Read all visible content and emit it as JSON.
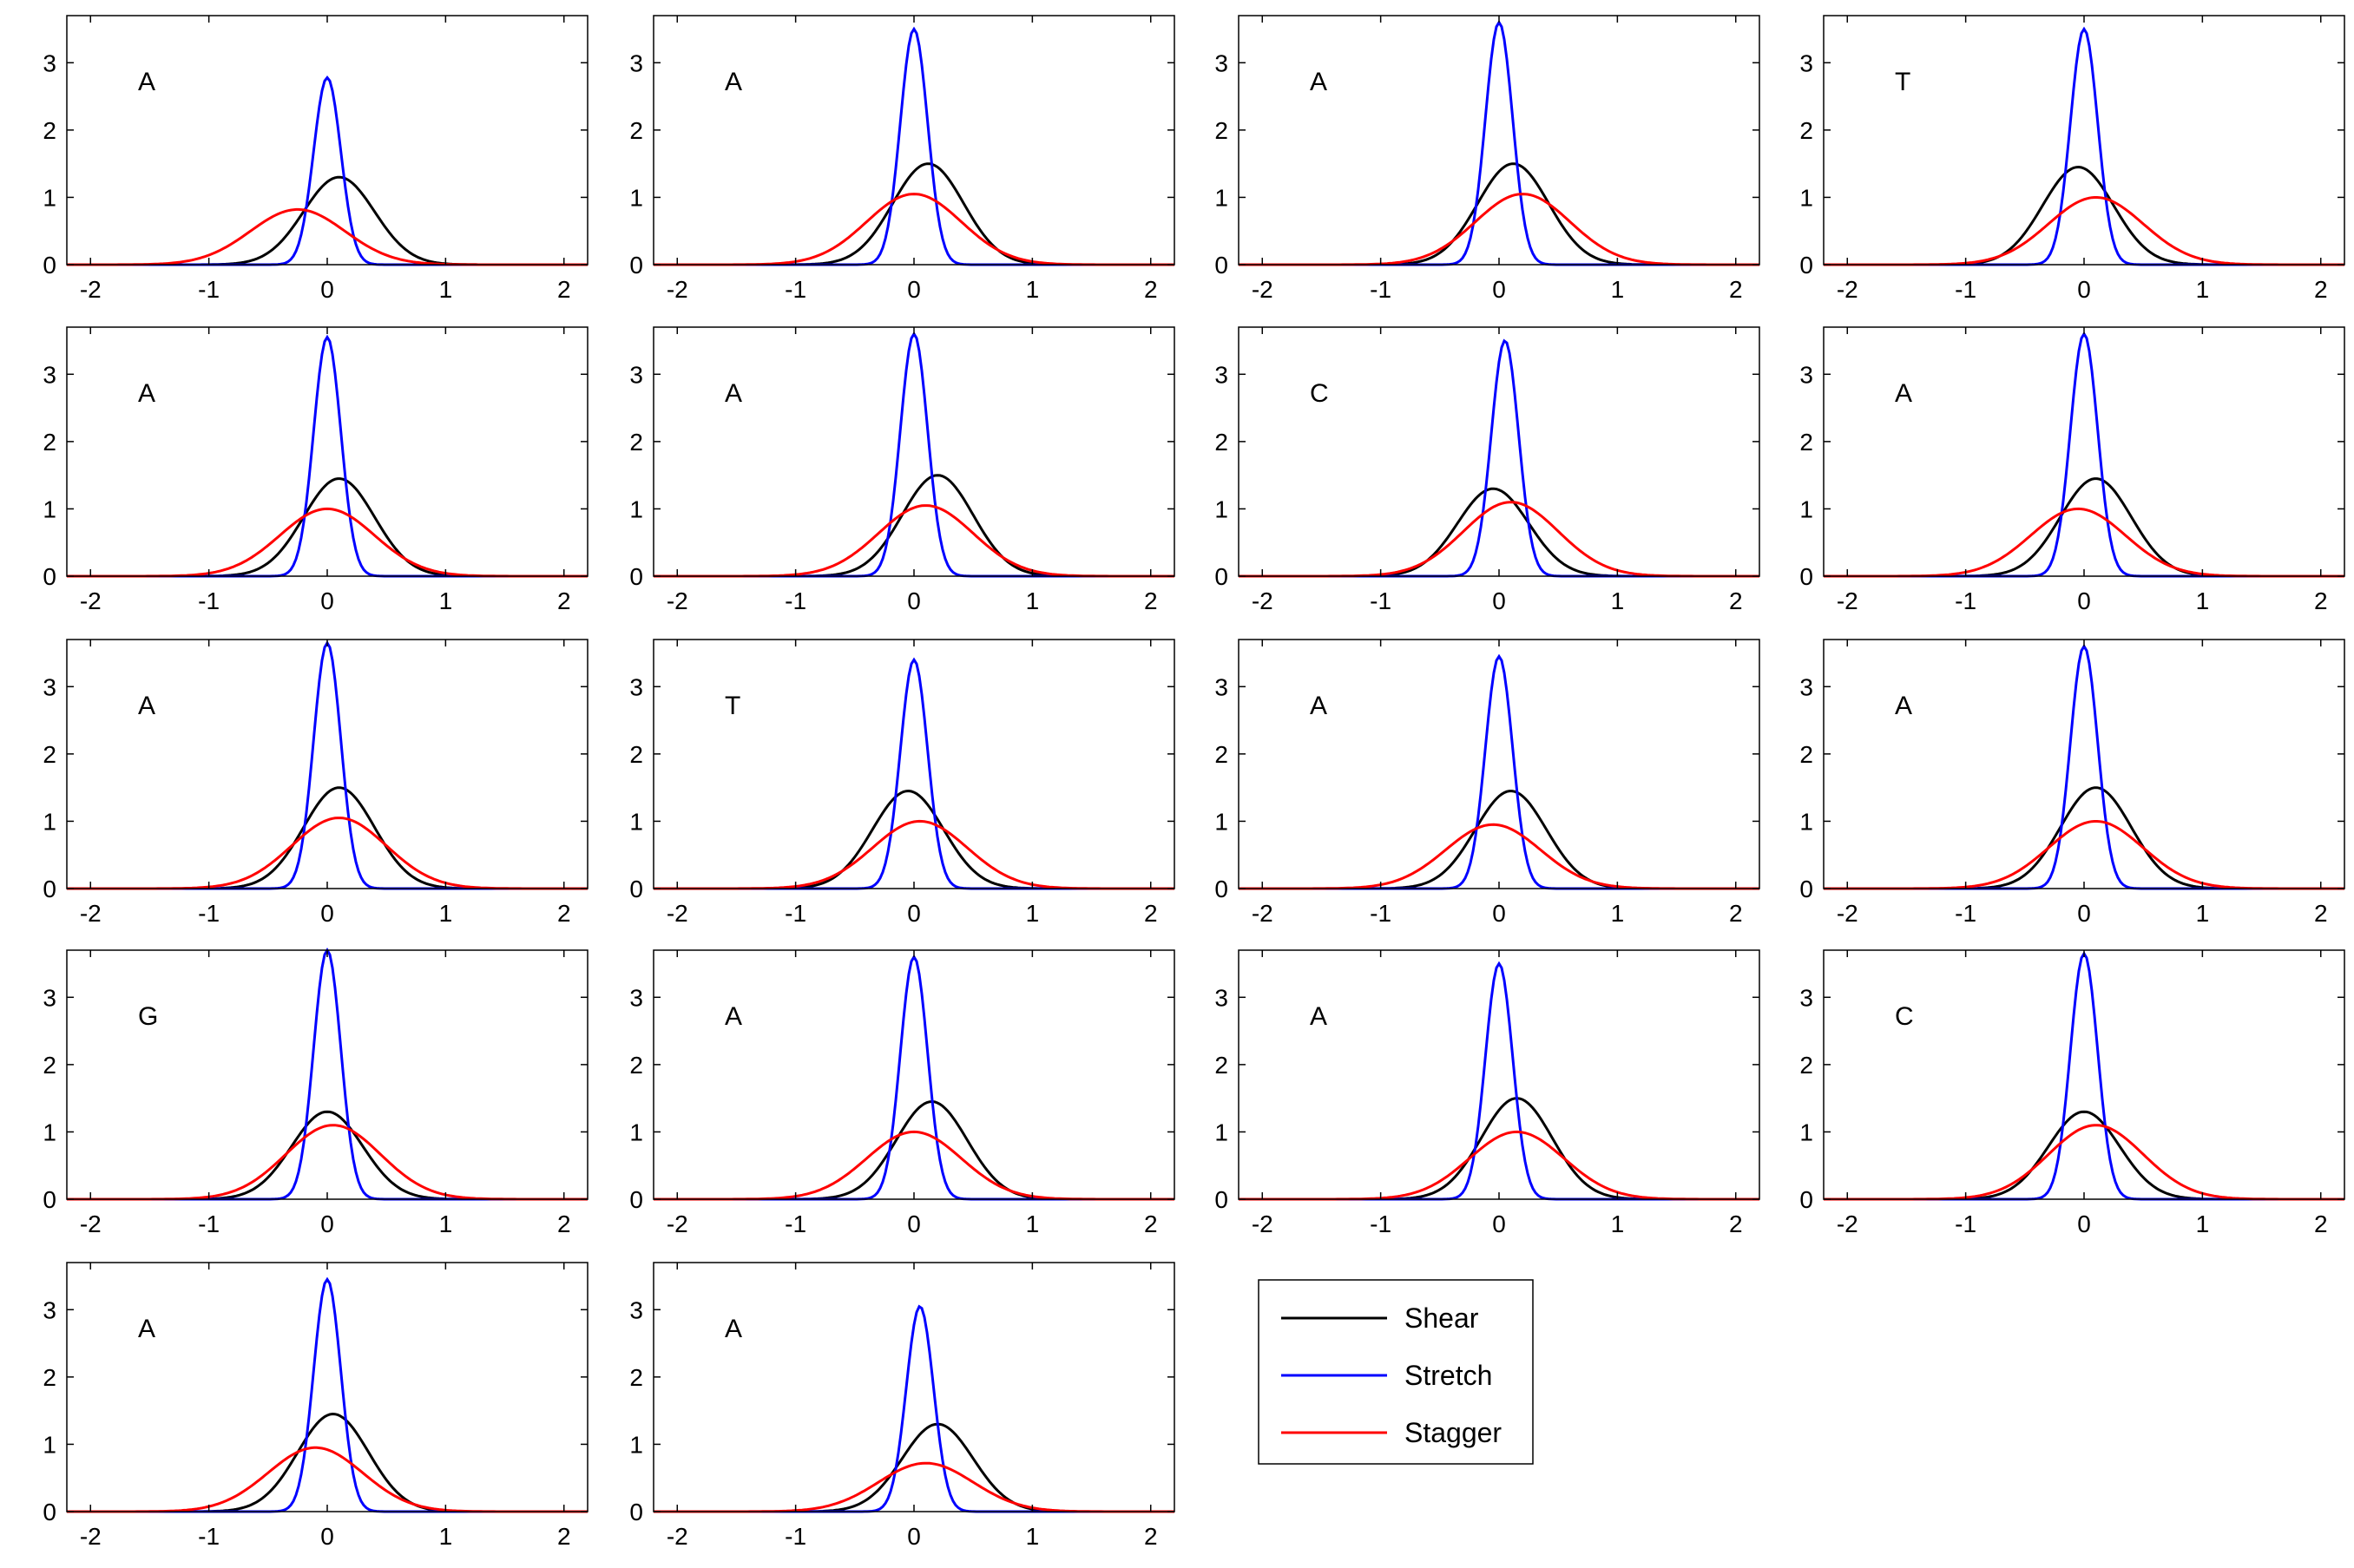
{
  "chart_data": {
    "type": "line",
    "xlim": [
      -2.2,
      2.2
    ],
    "ylim": [
      0,
      3.7
    ],
    "x_ticks": [
      -2,
      -1,
      0,
      1,
      2
    ],
    "y_ticks": [
      0,
      1,
      2,
      3
    ],
    "grid": false,
    "legend_placement": "bottom-right",
    "series_styles": [
      {
        "name": "Shear",
        "color": "#000000"
      },
      {
        "name": "Stretch",
        "color": "#0000ff"
      },
      {
        "name": "Stagger",
        "color": "#ff0000"
      }
    ],
    "panels": [
      {
        "label": "A",
        "curves": [
          {
            "series": "Shear",
            "mu": 0.1,
            "amp": 1.3
          },
          {
            "series": "Stretch",
            "mu": 0.0,
            "amp": 2.78
          },
          {
            "series": "Stagger",
            "mu": -0.25,
            "amp": 0.82
          }
        ]
      },
      {
        "label": "A",
        "curves": [
          {
            "series": "Shear",
            "mu": 0.12,
            "amp": 1.5
          },
          {
            "series": "Stretch",
            "mu": 0.0,
            "amp": 3.5
          },
          {
            "series": "Stagger",
            "mu": 0.0,
            "amp": 1.05
          }
        ]
      },
      {
        "label": "A",
        "curves": [
          {
            "series": "Shear",
            "mu": 0.12,
            "amp": 1.5
          },
          {
            "series": "Stretch",
            "mu": 0.0,
            "amp": 3.6
          },
          {
            "series": "Stagger",
            "mu": 0.2,
            "amp": 1.05
          }
        ]
      },
      {
        "label": "T",
        "curves": [
          {
            "series": "Shear",
            "mu": -0.05,
            "amp": 1.45
          },
          {
            "series": "Stretch",
            "mu": 0.0,
            "amp": 3.5
          },
          {
            "series": "Stagger",
            "mu": 0.1,
            "amp": 1.0
          }
        ]
      },
      {
        "label": "A",
        "curves": [
          {
            "series": "Shear",
            "mu": 0.1,
            "amp": 1.45
          },
          {
            "series": "Stretch",
            "mu": 0.0,
            "amp": 3.55
          },
          {
            "series": "Stagger",
            "mu": 0.0,
            "amp": 1.0
          }
        ]
      },
      {
        "label": "A",
        "curves": [
          {
            "series": "Shear",
            "mu": 0.2,
            "amp": 1.5
          },
          {
            "series": "Stretch",
            "mu": 0.0,
            "amp": 3.6
          },
          {
            "series": "Stagger",
            "mu": 0.1,
            "amp": 1.05
          }
        ]
      },
      {
        "label": "C",
        "curves": [
          {
            "series": "Shear",
            "mu": -0.05,
            "amp": 1.3
          },
          {
            "series": "Stretch",
            "mu": 0.05,
            "amp": 3.5
          },
          {
            "series": "Stagger",
            "mu": 0.1,
            "amp": 1.1
          }
        ]
      },
      {
        "label": "A",
        "curves": [
          {
            "series": "Shear",
            "mu": 0.1,
            "amp": 1.45
          },
          {
            "series": "Stretch",
            "mu": 0.0,
            "amp": 3.6
          },
          {
            "series": "Stagger",
            "mu": -0.05,
            "amp": 1.0
          }
        ]
      },
      {
        "label": "A",
        "curves": [
          {
            "series": "Shear",
            "mu": 0.1,
            "amp": 1.5
          },
          {
            "series": "Stretch",
            "mu": 0.0,
            "amp": 3.65
          },
          {
            "series": "Stagger",
            "mu": 0.1,
            "amp": 1.05
          }
        ]
      },
      {
        "label": "T",
        "curves": [
          {
            "series": "Shear",
            "mu": -0.05,
            "amp": 1.45
          },
          {
            "series": "Stretch",
            "mu": 0.0,
            "amp": 3.4
          },
          {
            "series": "Stagger",
            "mu": 0.05,
            "amp": 1.0
          }
        ]
      },
      {
        "label": "A",
        "curves": [
          {
            "series": "Shear",
            "mu": 0.1,
            "amp": 1.45
          },
          {
            "series": "Stretch",
            "mu": 0.0,
            "amp": 3.45
          },
          {
            "series": "Stagger",
            "mu": -0.05,
            "amp": 0.95
          }
        ]
      },
      {
        "label": "A",
        "curves": [
          {
            "series": "Shear",
            "mu": 0.1,
            "amp": 1.5
          },
          {
            "series": "Stretch",
            "mu": 0.0,
            "amp": 3.6
          },
          {
            "series": "Stagger",
            "mu": 0.1,
            "amp": 1.0
          }
        ]
      },
      {
        "label": "G",
        "curves": [
          {
            "series": "Shear",
            "mu": 0.0,
            "amp": 1.3
          },
          {
            "series": "Stretch",
            "mu": 0.0,
            "amp": 3.7
          },
          {
            "series": "Stagger",
            "mu": 0.05,
            "amp": 1.1
          }
        ]
      },
      {
        "label": "A",
        "curves": [
          {
            "series": "Shear",
            "mu": 0.15,
            "amp": 1.45
          },
          {
            "series": "Stretch",
            "mu": 0.0,
            "amp": 3.6
          },
          {
            "series": "Stagger",
            "mu": 0.0,
            "amp": 1.0
          }
        ]
      },
      {
        "label": "A",
        "curves": [
          {
            "series": "Shear",
            "mu": 0.15,
            "amp": 1.5
          },
          {
            "series": "Stretch",
            "mu": 0.0,
            "amp": 3.5
          },
          {
            "series": "Stagger",
            "mu": 0.15,
            "amp": 1.0
          }
        ]
      },
      {
        "label": "C",
        "curves": [
          {
            "series": "Shear",
            "mu": 0.0,
            "amp": 1.3
          },
          {
            "series": "Stretch",
            "mu": 0.0,
            "amp": 3.65
          },
          {
            "series": "Stagger",
            "mu": 0.1,
            "amp": 1.1
          }
        ]
      },
      {
        "label": "A",
        "curves": [
          {
            "series": "Shear",
            "mu": 0.05,
            "amp": 1.45
          },
          {
            "series": "Stretch",
            "mu": 0.0,
            "amp": 3.45
          },
          {
            "series": "Stagger",
            "mu": -0.1,
            "amp": 0.95
          }
        ]
      },
      {
        "label": "A",
        "curves": [
          {
            "series": "Shear",
            "mu": 0.2,
            "amp": 1.3
          },
          {
            "series": "Stretch",
            "mu": 0.05,
            "amp": 3.05
          },
          {
            "series": "Stagger",
            "mu": 0.1,
            "amp": 0.72
          }
        ]
      }
    ],
    "legend": {
      "entries": [
        "Shear",
        "Stretch",
        "Stagger"
      ]
    }
  }
}
